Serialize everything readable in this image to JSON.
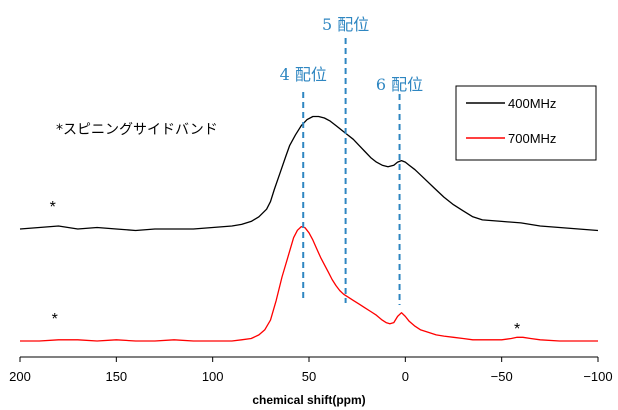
{
  "chart_data": {
    "type": "line",
    "title": "",
    "xlabel": "chemical shift(ppm)",
    "ylabel": "",
    "xlim": [
      200,
      -100
    ],
    "x_reversed": true,
    "x_ticks": [
      200,
      150,
      100,
      50,
      0,
      -50,
      -100
    ],
    "x_tick_labels": [
      "200",
      "150",
      "100",
      "50",
      "0",
      "−50",
      "−100"
    ],
    "y_axis_shown": false,
    "grid": false,
    "legend_position": "top-right",
    "colors": {
      "400MHz": "#000000",
      "700MHz": "#ff0000",
      "guides": "#2e86c1"
    },
    "series": [
      {
        "name": "400MHz",
        "color": "#000000",
        "x": [
          200,
          190,
          180,
          170,
          160,
          150,
          140,
          130,
          120,
          110,
          100,
          90,
          85,
          80,
          76,
          72,
          70,
          68,
          65,
          62,
          60,
          57,
          54,
          51,
          48,
          45,
          42,
          39,
          36,
          33,
          30,
          27,
          24,
          21,
          18,
          15,
          12,
          9,
          6,
          4,
          2,
          0,
          -2,
          -5,
          -10,
          -15,
          -20,
          -25,
          -30,
          -35,
          -40,
          -50,
          -60,
          -70,
          -80,
          -90,
          -100
        ],
        "y": [
          0.0,
          0.01,
          0.02,
          0.0,
          0.01,
          0.0,
          -0.01,
          0.0,
          0.0,
          0.0,
          0.01,
          0.02,
          0.03,
          0.05,
          0.08,
          0.13,
          0.18,
          0.26,
          0.37,
          0.48,
          0.55,
          0.62,
          0.68,
          0.72,
          0.74,
          0.74,
          0.73,
          0.71,
          0.68,
          0.65,
          0.62,
          0.59,
          0.55,
          0.51,
          0.47,
          0.44,
          0.42,
          0.41,
          0.42,
          0.44,
          0.45,
          0.44,
          0.42,
          0.39,
          0.33,
          0.27,
          0.21,
          0.16,
          0.12,
          0.08,
          0.06,
          0.05,
          0.04,
          0.02,
          0.01,
          0.0,
          -0.01
        ]
      },
      {
        "name": "700MHz",
        "color": "#ff0000",
        "x": [
          200,
          190,
          180,
          170,
          160,
          150,
          140,
          130,
          120,
          110,
          100,
          90,
          85,
          80,
          76,
          73,
          70,
          67,
          64,
          61,
          58,
          56,
          54,
          52,
          50,
          48,
          46,
          44,
          42,
          40,
          38,
          36,
          34,
          32,
          30,
          27,
          24,
          21,
          18,
          15,
          12,
          10,
          8,
          6,
          4,
          2,
          0,
          -2,
          -5,
          -8,
          -12,
          -16,
          -20,
          -25,
          -30,
          -35,
          -40,
          -50,
          -55,
          -58,
          -61,
          -65,
          -70,
          -80,
          -90,
          -100
        ],
        "y": [
          0.0,
          0.0,
          0.01,
          0.01,
          0.0,
          0.01,
          0.0,
          0.0,
          0.01,
          0.0,
          0.0,
          0.0,
          0.01,
          0.02,
          0.05,
          0.09,
          0.17,
          0.33,
          0.52,
          0.68,
          0.84,
          0.9,
          0.93,
          0.92,
          0.88,
          0.82,
          0.75,
          0.68,
          0.62,
          0.56,
          0.5,
          0.45,
          0.41,
          0.38,
          0.36,
          0.33,
          0.3,
          0.27,
          0.24,
          0.21,
          0.17,
          0.15,
          0.14,
          0.15,
          0.2,
          0.23,
          0.2,
          0.16,
          0.12,
          0.09,
          0.07,
          0.05,
          0.04,
          0.03,
          0.02,
          0.01,
          0.01,
          0.01,
          0.02,
          0.03,
          0.03,
          0.02,
          0.01,
          0.0,
          0.0,
          0.0
        ]
      }
    ],
    "annotations": {
      "coordination_lines": [
        {
          "label": "4 配位",
          "x": 53
        },
        {
          "label": "5 配位",
          "x": 31
        },
        {
          "label": "6 配位",
          "x": 3
        }
      ],
      "spinning_sideband_note": "*スピニングサイドバンド",
      "sideband_marker": "*",
      "sideband_markers": [
        {
          "series": "400MHz",
          "x": 183
        },
        {
          "series": "700MHz",
          "x": 182
        },
        {
          "series": "700MHz",
          "x": -58
        }
      ]
    }
  }
}
